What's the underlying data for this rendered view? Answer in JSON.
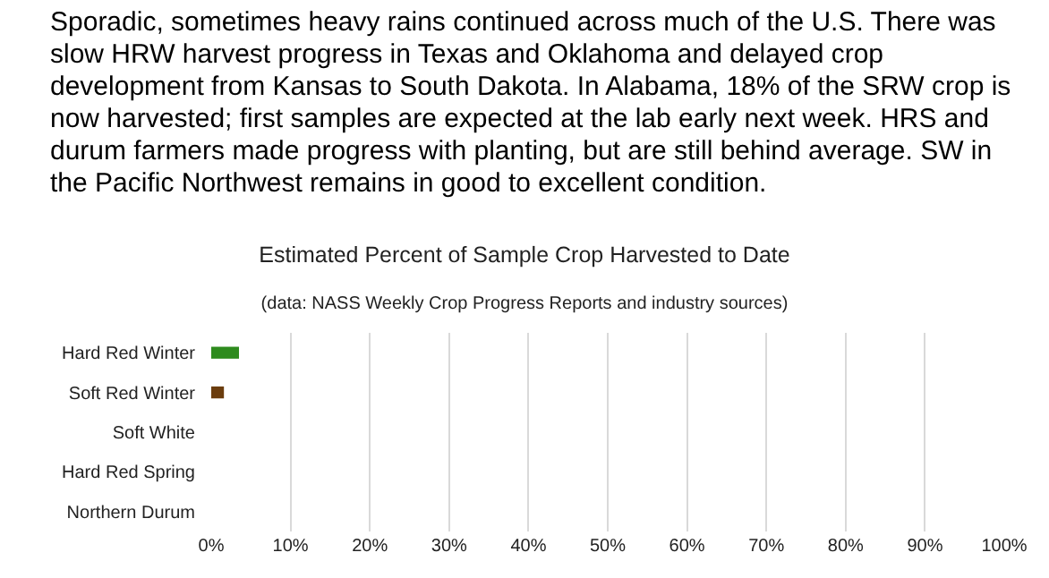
{
  "chart_data": {
    "type": "bar",
    "orientation": "horizontal",
    "title": "Estimated Percent of Sample Crop Harvested to Date",
    "subtitle": "(data: NASS Weekly Crop Progress Reports and industry sources)",
    "annotations": [
      "Sporadic, sometimes heavy rains continued across much of the U.S. There was slow HRW harvest progress in Texas and Oklahoma and delayed crop development from Kansas to South Dakota. In Alabama, 18% of the SRW crop is now harvested; first samples are expected at the lab early next week. HRS and durum farmers made progress with planting, but are still behind average. SW in the Pacific Northwest remains in good to excellent condition."
    ],
    "categories": [
      "Hard Red Winter",
      "Soft Red Winter",
      "Soft White",
      "Hard Red Spring",
      "Northern Durum"
    ],
    "values": [
      3.5,
      1.6,
      0,
      0,
      0
    ],
    "colors": [
      "#2e8b1e",
      "#6b3d0e",
      "#6b3d0e",
      "#6b3d0e",
      "#6b3d0e"
    ],
    "xlim": [
      0,
      100
    ],
    "xticks": [
      {
        "value": 0,
        "label": "0%"
      },
      {
        "value": 10,
        "label": "10%"
      },
      {
        "value": 20,
        "label": "20%"
      },
      {
        "value": 30,
        "label": "30%"
      },
      {
        "value": 40,
        "label": "40%"
      },
      {
        "value": 50,
        "label": "50%"
      },
      {
        "value": 60,
        "label": "60%"
      },
      {
        "value": 70,
        "label": "70%"
      },
      {
        "value": 80,
        "label": "80%"
      },
      {
        "value": 90,
        "label": "90%"
      },
      {
        "value": 100,
        "label": "100%"
      }
    ],
    "grid": "x"
  }
}
